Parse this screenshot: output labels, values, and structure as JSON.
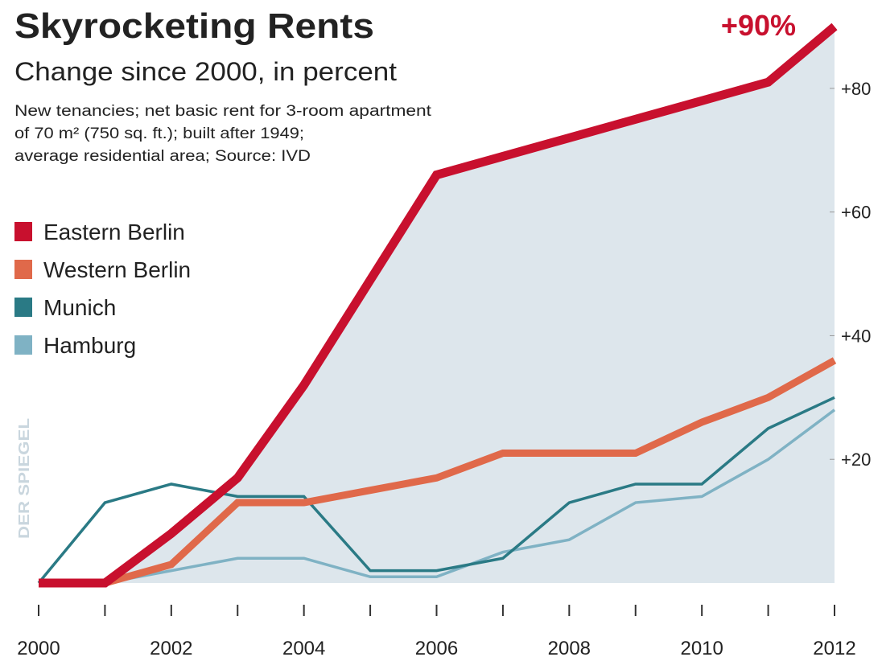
{
  "chart_data": {
    "type": "line",
    "title": "Skyrocketing Rents",
    "subtitle": "Change since 2000, in percent",
    "note": [
      "New tenancies; net basic rent for 3-room apartment",
      "of 70 m² (750 sq. ft.); built after 1949;",
      "average residential area; Source: IVD"
    ],
    "source_logo": "DER SPIEGEL",
    "x": [
      2000,
      2001,
      2002,
      2003,
      2004,
      2005,
      2006,
      2007,
      2008,
      2009,
      2010,
      2011,
      2012
    ],
    "series": [
      {
        "name": "Eastern Berlin",
        "color": "#c8102e",
        "values": [
          0,
          0,
          8,
          17,
          32,
          49,
          66,
          69,
          72,
          75,
          78,
          81,
          90
        ],
        "value_labels": [
          null,
          null,
          null,
          null,
          null,
          null,
          null,
          null,
          null,
          null,
          null,
          null,
          "+90%"
        ]
      },
      {
        "name": "Western Berlin",
        "color": "#e0694a",
        "values": [
          0,
          0,
          3,
          13,
          13,
          15,
          17,
          21,
          21,
          21,
          26,
          30,
          36
        ]
      },
      {
        "name": "Munich",
        "color": "#2a7a85",
        "values": [
          0,
          13,
          16,
          14,
          14,
          2,
          2,
          4,
          13,
          16,
          16,
          25,
          30
        ]
      },
      {
        "name": "Hamburg",
        "color": "#7fb2c4",
        "values": [
          0,
          0,
          2,
          4,
          4,
          1,
          1,
          5,
          7,
          13,
          14,
          20,
          28
        ]
      }
    ],
    "xlim": [
      2000,
      2012
    ],
    "xticks": [
      2000,
      2002,
      2004,
      2006,
      2008,
      2010,
      2012
    ],
    "xminorticks": [
      2001,
      2003,
      2005,
      2007,
      2009,
      2011
    ],
    "ylim": [
      0,
      90
    ],
    "yticks": [
      {
        "value": 20,
        "label": "+20"
      },
      {
        "value": 40,
        "label": "+40"
      },
      {
        "value": 60,
        "label": "+60"
      },
      {
        "value": 80,
        "label": "+80"
      }
    ],
    "legend": "upper left",
    "area_color": "#dde6ec"
  }
}
